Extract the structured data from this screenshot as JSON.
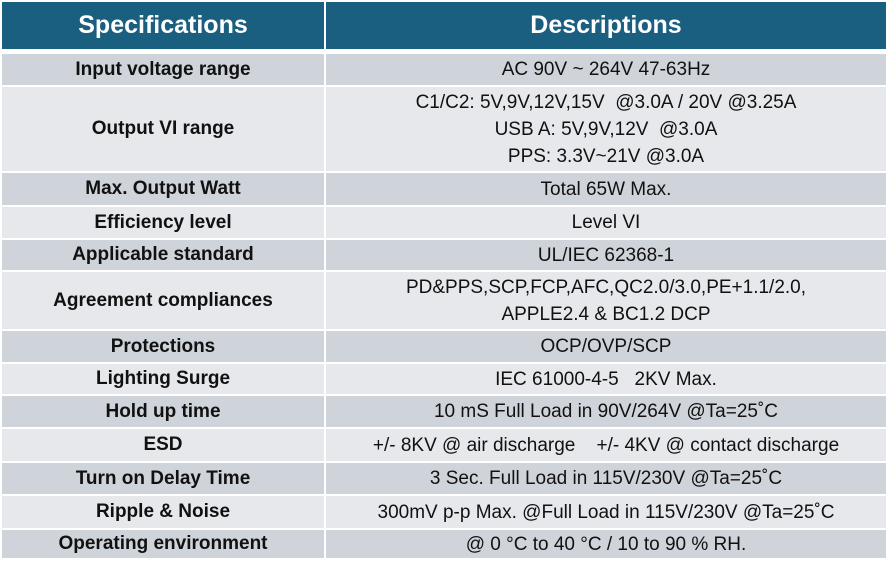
{
  "header": {
    "spec": "Specifications",
    "desc": "Descriptions"
  },
  "colors": {
    "header": "#1a5f80",
    "row_dark": "#cfd4da",
    "row_light": "#e6e8eb"
  },
  "rows": [
    {
      "spec": "Input voltage range",
      "desc": [
        "AC 90V ~ 264V 47-63Hz"
      ]
    },
    {
      "spec": "Output VI range",
      "desc": [
        "C1/C2: 5V,9V,12V,15V  @3.0A / 20V @3.25A",
        "USB A: 5V,9V,12V  @3.0A",
        "PPS: 3.3V~21V @3.0A"
      ]
    },
    {
      "spec": "Max. Output Watt",
      "desc": [
        "Total 65W Max."
      ]
    },
    {
      "spec": "Efficiency level",
      "desc": [
        "Level VI"
      ]
    },
    {
      "spec": "Applicable standard",
      "desc": [
        "UL/IEC 62368-1"
      ]
    },
    {
      "spec": "Agreement compliances",
      "desc": [
        "PD&PPS,SCP,FCP,AFC,QC2.0/3.0,PE+1.1/2.0,",
        "APPLE2.4 & BC1.2 DCP"
      ]
    },
    {
      "spec": "Protections",
      "desc": [
        "OCP/OVP/SCP"
      ]
    },
    {
      "spec": "Lighting Surge",
      "desc": [
        "IEC 61000-4-5   2KV Max."
      ]
    },
    {
      "spec": "Hold up time",
      "desc": [
        "10 mS Full Load in 90V/264V @Ta=25˚C"
      ]
    },
    {
      "spec": "ESD",
      "desc": [
        "+/- 8KV @ air discharge    +/- 4KV @ contact discharge"
      ]
    },
    {
      "spec": "Turn on Delay Time",
      "desc": [
        "3 Sec. Full Load in 115V/230V @Ta=25˚C"
      ]
    },
    {
      "spec": "Ripple & Noise",
      "desc": [
        "300mV p-p Max. @Full Load in 115V/230V @Ta=25˚C"
      ]
    },
    {
      "spec": "Operating environment",
      "desc": [
        "@ 0 °C to 40 °C / 10 to 90 % RH."
      ]
    }
  ]
}
